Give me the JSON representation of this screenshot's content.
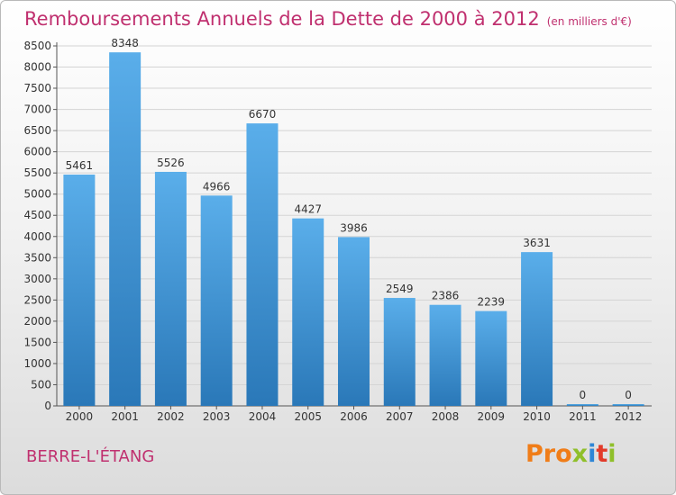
{
  "header": {
    "title": "Remboursements Annuels de la Dette de 2000 à 2012",
    "unit": "(en milliers d'€)"
  },
  "footer": {
    "city": "BERRE-L'ÉTANG",
    "logo": [
      "Pro",
      "x",
      "i",
      "t",
      "i"
    ]
  },
  "colors": {
    "title": "#c0306f",
    "bar_top": "#5aaeea",
    "bar_bottom": "#2a78b8"
  },
  "chart_data": {
    "type": "bar",
    "categories": [
      "2000",
      "2001",
      "2002",
      "2003",
      "2004",
      "2005",
      "2006",
      "2007",
      "2008",
      "2009",
      "2010",
      "2011",
      "2012"
    ],
    "values": [
      5461,
      8348,
      5526,
      4966,
      6670,
      4427,
      3986,
      2549,
      2386,
      2239,
      3631,
      0,
      0
    ],
    "data_labels": [
      "5461",
      "8348",
      "5526",
      "4966",
      "6670",
      "4427",
      "3986",
      "2549",
      "2386",
      "2239",
      "3631",
      "0",
      "0"
    ],
    "y_ticks": [
      0,
      500,
      1000,
      1500,
      2000,
      2500,
      3000,
      3500,
      4000,
      4500,
      5000,
      5500,
      6000,
      6500,
      7000,
      7500,
      8000,
      8500
    ],
    "ylim": [
      0,
      8500
    ],
    "grid": true
  }
}
